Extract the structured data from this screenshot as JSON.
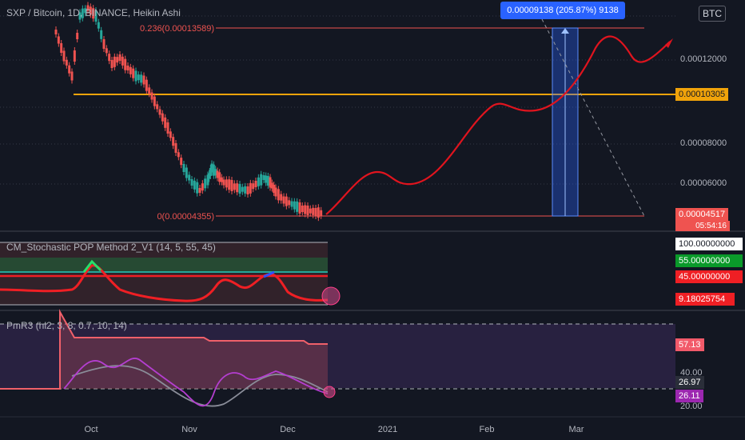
{
  "header": {
    "title": "SXP / Bitcoin, 1D, BINANCE, Heikin Ashi",
    "currency_badge": "BTC"
  },
  "measure": {
    "label": "0.00009138 (205.87%) 9138"
  },
  "fib": {
    "top_label": "0.236(0.00013589)",
    "bottom_label": "0(0.00004355)"
  },
  "stochastic": {
    "title": "CM_Stochastic POP Method 2_V1 (14, 5, 55, 45)",
    "tags": {
      "upper": "100.00000000",
      "buy": "55.00000000",
      "sell": "45.00000000",
      "current": "9.18025754"
    }
  },
  "pmr": {
    "title": "PmR3 (hl2, 3, 8, 0.7, 10, 14)",
    "tags": {
      "upper": "57.13",
      "grey": "26.97",
      "purple": "26.11"
    },
    "axis": [
      "40.00",
      "20.00"
    ]
  },
  "price_axis": {
    "ticks": [
      "0.00012000",
      "0.00008000",
      "0.00006000"
    ],
    "tags": {
      "support": "0.00010305",
      "current": "0.00004517",
      "countdown": "05:54:16"
    }
  },
  "time_axis": [
    "Oct",
    "Nov",
    "Dec",
    "2021",
    "Feb",
    "Mar"
  ],
  "colors": {
    "background": "#131722",
    "candle_up": "#26a69a",
    "candle_down": "#ef5350",
    "projection": "#e0141e",
    "support": "#f0a30a",
    "measure": "#2962ff"
  },
  "chart_data": {
    "type": "candlestick",
    "symbol": "SXP / Bitcoin",
    "timeframe": "1D",
    "exchange": "BINANCE",
    "style": "Heikin Ashi",
    "y_axis_ticks": [
      6e-05,
      8e-05,
      0.00012
    ],
    "support_level": 0.00010305,
    "current_price": 4.517e-05,
    "fib_levels": [
      {
        "ratio": 0.236,
        "price": 0.00013589
      },
      {
        "ratio": 0,
        "price": 4.355e-05
      }
    ],
    "projection_points": [
      [
        "Dec 12",
        4.517e-05
      ],
      [
        "Dec 22",
        6.6e-05
      ],
      [
        "Dec 28",
        6e-05
      ],
      [
        "Jan 18",
        7.5e-05
      ],
      [
        "Feb 5",
        0.000103
      ],
      [
        "Feb 14",
        0.0001
      ],
      [
        "Feb 28",
        0.00010305
      ],
      [
        "Mar 8",
        0.000132
      ],
      [
        "Mar 19",
        0.000125
      ],
      [
        "Mar 25",
        0.00013
      ]
    ],
    "stochastic_levels": [
      100,
      55,
      45
    ],
    "stochastic_current": 9.18025754,
    "pmr_values": {
      "upper": 57.13,
      "grey": 26.97,
      "purple": 26.11
    },
    "pmr_axis": [
      40,
      20
    ],
    "x_ticks": [
      "Oct",
      "Nov",
      "Dec",
      "2021",
      "Feb",
      "Mar"
    ]
  }
}
